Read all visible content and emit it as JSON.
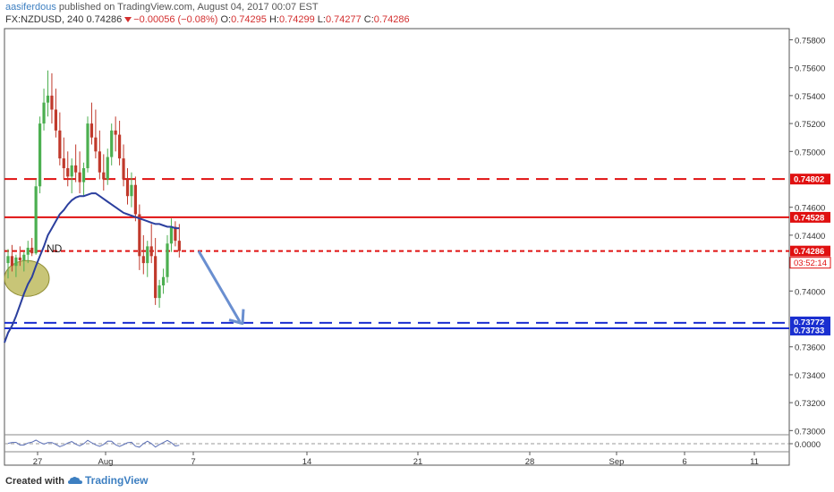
{
  "header": {
    "user": "aasiferdous",
    "published_text": " published on TradingView.com, August 04, 2017 00:07 EST",
    "symbol": "FX:NZDUSD, 240",
    "last": "0.74286",
    "change": "−0.00056 (−0.08%)",
    "open_label": "O:",
    "open": "0.74295",
    "high_label": "H:",
    "high": "0.74299",
    "low_label": "L:",
    "low": "0.74277",
    "close_label": "C:",
    "close": "0.74286"
  },
  "footer": {
    "created_with": "Created with",
    "brand": "TradingView"
  },
  "colors": {
    "up": "#4caf50",
    "down": "#c0392b",
    "red_line": "#e01010",
    "blue_line": "#1a2fd0",
    "ma": "#2b3f9e",
    "arrow": "#6a8fd0",
    "highlight": "#b5b24a"
  },
  "chart_data": {
    "type": "candlestick",
    "symbol": "FX:NZDUSD",
    "timeframe": "240",
    "x_tick_labels": [
      "27",
      "Aug",
      "7",
      "14",
      "21",
      "28",
      "Sep",
      "6",
      "11"
    ],
    "y_tick_labels": [
      "0.75800",
      "0.75600",
      "0.75400",
      "0.75200",
      "0.75000",
      "0.74600",
      "0.74400",
      "0.74000",
      "0.73600",
      "0.73400",
      "0.73200",
      "0.73000"
    ],
    "ylim": [
      0.7297,
      0.7588
    ],
    "annotation": "ND",
    "horizontal_levels": [
      {
        "label": "0.74802",
        "value": 0.74802,
        "color": "#e01010",
        "style": "dashed"
      },
      {
        "label": "0.74528",
        "value": 0.74528,
        "color": "#e01010",
        "style": "solid"
      },
      {
        "label": "0.74286",
        "value": 0.74286,
        "color": "#e01010",
        "style": "dotted"
      },
      {
        "label": "0.73772",
        "value": 0.73772,
        "color": "#1a2fd0",
        "style": "dashed"
      },
      {
        "label": "0.73733",
        "value": 0.73733,
        "color": "#1a2fd0",
        "style": "solid"
      }
    ],
    "countdown": "03:52:14",
    "oscillator": {
      "tick_label": "0.0000"
    },
    "candles": [
      {
        "o": 0.742,
        "h": 0.743,
        "l": 0.7409,
        "c": 0.7425
      },
      {
        "o": 0.7425,
        "h": 0.7433,
        "l": 0.7414,
        "c": 0.7418
      },
      {
        "o": 0.7418,
        "h": 0.7426,
        "l": 0.741,
        "c": 0.7424
      },
      {
        "o": 0.7424,
        "h": 0.7432,
        "l": 0.7418,
        "c": 0.7422
      },
      {
        "o": 0.7422,
        "h": 0.7428,
        "l": 0.7414,
        "c": 0.7426
      },
      {
        "o": 0.7426,
        "h": 0.7436,
        "l": 0.742,
        "c": 0.7431
      },
      {
        "o": 0.7431,
        "h": 0.7438,
        "l": 0.7425,
        "c": 0.7427
      },
      {
        "o": 0.7427,
        "h": 0.748,
        "l": 0.7426,
        "c": 0.7475
      },
      {
        "o": 0.7475,
        "h": 0.7525,
        "l": 0.747,
        "c": 0.752
      },
      {
        "o": 0.752,
        "h": 0.7545,
        "l": 0.7515,
        "c": 0.7535
      },
      {
        "o": 0.7535,
        "h": 0.7558,
        "l": 0.7525,
        "c": 0.754
      },
      {
        "o": 0.754,
        "h": 0.7556,
        "l": 0.752,
        "c": 0.753
      },
      {
        "o": 0.753,
        "h": 0.7545,
        "l": 0.751,
        "c": 0.7515
      },
      {
        "o": 0.7515,
        "h": 0.7528,
        "l": 0.749,
        "c": 0.7495
      },
      {
        "o": 0.7495,
        "h": 0.751,
        "l": 0.748,
        "c": 0.7488
      },
      {
        "o": 0.7488,
        "h": 0.75,
        "l": 0.7475,
        "c": 0.7482
      },
      {
        "o": 0.7482,
        "h": 0.7495,
        "l": 0.747,
        "c": 0.749
      },
      {
        "o": 0.749,
        "h": 0.7505,
        "l": 0.7478,
        "c": 0.7485
      },
      {
        "o": 0.7485,
        "h": 0.75,
        "l": 0.747,
        "c": 0.7478
      },
      {
        "o": 0.7478,
        "h": 0.7492,
        "l": 0.7468,
        "c": 0.7488
      },
      {
        "o": 0.7488,
        "h": 0.7525,
        "l": 0.7485,
        "c": 0.752
      },
      {
        "o": 0.752,
        "h": 0.7535,
        "l": 0.7505,
        "c": 0.751
      },
      {
        "o": 0.751,
        "h": 0.753,
        "l": 0.7495,
        "c": 0.75
      },
      {
        "o": 0.75,
        "h": 0.7515,
        "l": 0.748,
        "c": 0.7485
      },
      {
        "o": 0.7485,
        "h": 0.7498,
        "l": 0.7472,
        "c": 0.748
      },
      {
        "o": 0.748,
        "h": 0.7502,
        "l": 0.7476,
        "c": 0.7496
      },
      {
        "o": 0.7496,
        "h": 0.752,
        "l": 0.749,
        "c": 0.7515
      },
      {
        "o": 0.7515,
        "h": 0.7525,
        "l": 0.75,
        "c": 0.7512
      },
      {
        "o": 0.7512,
        "h": 0.7522,
        "l": 0.749,
        "c": 0.7495
      },
      {
        "o": 0.7495,
        "h": 0.7505,
        "l": 0.7475,
        "c": 0.748
      },
      {
        "o": 0.748,
        "h": 0.7488,
        "l": 0.7462,
        "c": 0.7468
      },
      {
        "o": 0.7468,
        "h": 0.7485,
        "l": 0.746,
        "c": 0.7476
      },
      {
        "o": 0.7476,
        "h": 0.7482,
        "l": 0.745,
        "c": 0.7455
      },
      {
        "o": 0.7455,
        "h": 0.7462,
        "l": 0.7415,
        "c": 0.7425
      },
      {
        "o": 0.7425,
        "h": 0.744,
        "l": 0.7412,
        "c": 0.742
      },
      {
        "o": 0.742,
        "h": 0.7436,
        "l": 0.741,
        "c": 0.7432
      },
      {
        "o": 0.7432,
        "h": 0.7448,
        "l": 0.742,
        "c": 0.7425
      },
      {
        "o": 0.7425,
        "h": 0.7438,
        "l": 0.739,
        "c": 0.7395
      },
      {
        "o": 0.7395,
        "h": 0.7408,
        "l": 0.7388,
        "c": 0.7404
      },
      {
        "o": 0.7404,
        "h": 0.7416,
        "l": 0.7398,
        "c": 0.741
      },
      {
        "o": 0.741,
        "h": 0.744,
        "l": 0.7406,
        "c": 0.7434
      },
      {
        "o": 0.7434,
        "h": 0.7452,
        "l": 0.7428,
        "c": 0.7446
      },
      {
        "o": 0.7446,
        "h": 0.745,
        "l": 0.7432,
        "c": 0.7436
      },
      {
        "o": 0.7436,
        "h": 0.7448,
        "l": 0.7424,
        "c": 0.74286
      }
    ],
    "ma_values": [
      0.737,
      0.7375,
      0.7382,
      0.739,
      0.7398,
      0.7405,
      0.741,
      0.7418,
      0.7425,
      0.7432,
      0.744,
      0.7445,
      0.745,
      0.7455,
      0.7458,
      0.7462,
      0.7465,
      0.7467,
      0.7468,
      0.7468,
      0.7469,
      0.747,
      0.747,
      0.7468,
      0.7466,
      0.7464,
      0.7462,
      0.746,
      0.7458,
      0.7456,
      0.7455,
      0.7454,
      0.7453,
      0.7452,
      0.7451,
      0.745,
      0.7449,
      0.7448,
      0.7448,
      0.7447,
      0.7446,
      0.7446,
      0.7445,
      0.7445
    ]
  }
}
